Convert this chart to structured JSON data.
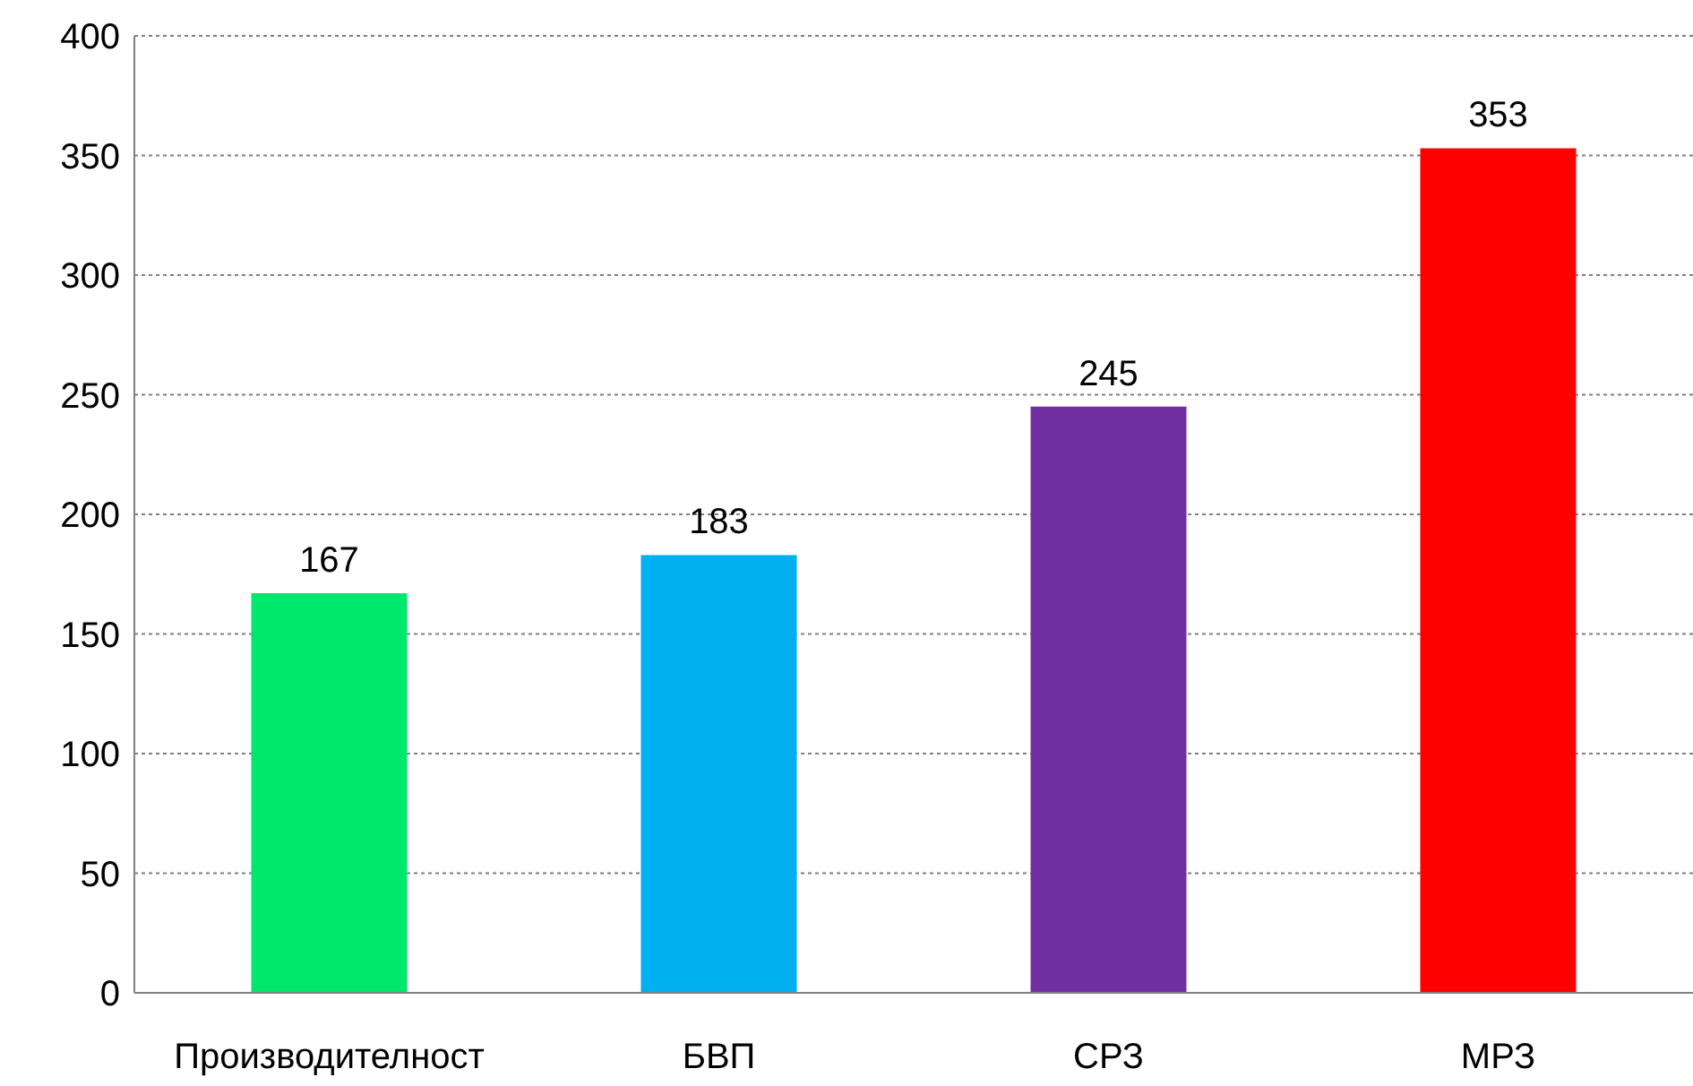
{
  "chart_data": {
    "type": "bar",
    "categories": [
      "Производителност",
      "БВП",
      "СРЗ",
      "МРЗ"
    ],
    "values": [
      167,
      183,
      245,
      353
    ],
    "colors": [
      "#00e86c",
      "#00b0f0",
      "#7030a0",
      "#ff0000"
    ],
    "ylim": [
      0,
      400
    ],
    "yticks": [
      0,
      50,
      100,
      150,
      200,
      250,
      300,
      350,
      400
    ],
    "grid": "y",
    "data_labels": true
  }
}
